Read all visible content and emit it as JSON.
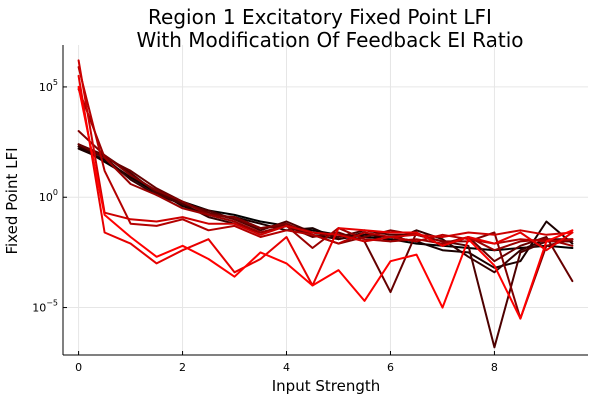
{
  "chart_data": {
    "type": "line",
    "title": [
      "Region 1 Excitatory Fixed Point LFI",
      "With Modification Of Feedback EI Ratio"
    ],
    "xlabel": "Input Strength",
    "ylabel": "Fixed Point LFI",
    "xlim": [
      -0.3,
      9.8
    ],
    "ylim": [
      -7.15,
      6.9
    ],
    "yscale": "log10",
    "grid": true,
    "legend": "none",
    "x_ticks": [
      0,
      2,
      4,
      6,
      8
    ],
    "x_tick_labels": [
      "0",
      "2",
      "4",
      "6",
      "8"
    ],
    "y_ticks": [
      -5,
      0,
      5
    ],
    "y_tick_labels": [
      {
        "base": "10",
        "exp": "−5"
      },
      {
        "base": "10",
        "exp": "0"
      },
      {
        "base": "10",
        "exp": "5"
      }
    ],
    "x": [
      0,
      0.5,
      1,
      1.5,
      2,
      2.5,
      3,
      3.5,
      4,
      4.5,
      5,
      5.5,
      6,
      6.5,
      7,
      7.5,
      8,
      8.5,
      9,
      9.5
    ],
    "series": [
      {
        "color": "#000000",
        "log10_values": [
          2.3,
          1.6,
          0.9,
          0.2,
          -0.2,
          -0.6,
          -0.8,
          -1.1,
          -1.3,
          -1.5,
          -1.7,
          -1.8,
          -1.9,
          -2.1,
          -2.2,
          -2.3,
          -2.4,
          -2.3,
          -2.2,
          -2.3
        ]
      },
      {
        "color": "#1a0000",
        "log10_values": [
          2.2,
          1.7,
          0.9,
          0.3,
          -0.4,
          -0.8,
          -0.9,
          -1.2,
          -1.5,
          -1.4,
          -1.9,
          -1.7,
          -1.8,
          -2.0,
          -2.4,
          -2.5,
          -3.2,
          -2.9,
          -1.1,
          -2.1
        ]
      },
      {
        "color": "#330000",
        "log10_values": [
          2.3,
          1.8,
          0.8,
          0.1,
          -0.3,
          -0.9,
          -1.2,
          -1.6,
          -1.3,
          -1.7,
          -1.9,
          -1.6,
          -2.0,
          -1.5,
          -1.9,
          -2.7,
          -3.4,
          -2.4,
          -1.9,
          -1.9
        ]
      },
      {
        "color": "#4d0000",
        "log10_values": [
          2.4,
          1.9,
          1.1,
          0.2,
          -0.3,
          -0.6,
          -1.0,
          -1.5,
          -1.1,
          -1.6,
          -1.8,
          -1.5,
          -1.7,
          -1.7,
          -2.0,
          -2.2,
          -6.8,
          -2.5,
          -2.0,
          -2.0
        ]
      },
      {
        "color": "#660000",
        "log10_values": [
          2.4,
          1.8,
          1.2,
          0.4,
          -0.2,
          -0.7,
          -1.0,
          -1.4,
          -1.3,
          -1.8,
          -1.6,
          -2.0,
          -4.3,
          -1.6,
          -2.2,
          -1.8,
          -2.9,
          -2.2,
          -1.8,
          -3.8
        ]
      },
      {
        "color": "#800000",
        "log10_values": [
          3.0,
          1.9,
          1.0,
          0.3,
          -0.2,
          -0.8,
          -0.9,
          -1.4,
          -1.2,
          -1.7,
          -2.1,
          -1.8,
          -1.5,
          -1.7,
          -2.0,
          -2.0,
          -1.6,
          -5.5,
          -2.2,
          -1.9
        ]
      },
      {
        "color": "#990000",
        "log10_values": [
          4.9,
          1.8,
          0.6,
          0.1,
          -0.5,
          -0.8,
          -1.1,
          -1.6,
          -1.3,
          -2.3,
          -1.4,
          -1.9,
          -2.0,
          -1.9,
          -2.1,
          -1.8,
          -2.4,
          -2.0,
          -1.9,
          -2.2
        ]
      },
      {
        "color": "#b30000",
        "log10_values": [
          5.9,
          1.2,
          -1.2,
          -1.3,
          -1.0,
          -1.5,
          -1.3,
          -1.8,
          -1.5,
          -1.7,
          -2.1,
          -1.6,
          -1.8,
          -2.0,
          -1.7,
          -1.9,
          -2.1,
          -1.9,
          -2.0,
          -1.9
        ]
      },
      {
        "color": "#cc0000",
        "log10_values": [
          6.2,
          -0.7,
          -1.0,
          -1.1,
          -0.9,
          -1.2,
          -1.2,
          -1.7,
          -1.3,
          -1.6,
          -1.7,
          -2.0,
          -1.8,
          -1.7,
          -1.8,
          -1.6,
          -1.7,
          -1.5,
          -1.7,
          -1.6
        ]
      },
      {
        "color": "#e60000",
        "log10_values": [
          5.5,
          -1.6,
          -2.1,
          -3.0,
          -2.4,
          -1.9,
          -3.4,
          -2.8,
          -1.8,
          -4.0,
          -1.4,
          -1.5,
          -1.6,
          -1.6,
          -2.2,
          -1.8,
          -2.1,
          -1.6,
          -2.4,
          -1.6
        ]
      },
      {
        "color": "#ff0000",
        "log10_values": [
          5.0,
          -0.8,
          -1.8,
          -2.7,
          -2.2,
          -2.8,
          -3.6,
          -2.5,
          -3.0,
          -4.0,
          -3.3,
          -4.7,
          -2.9,
          -2.6,
          -5.0,
          -1.9,
          -3.1,
          -5.5,
          -2.0,
          -1.5
        ]
      }
    ]
  }
}
